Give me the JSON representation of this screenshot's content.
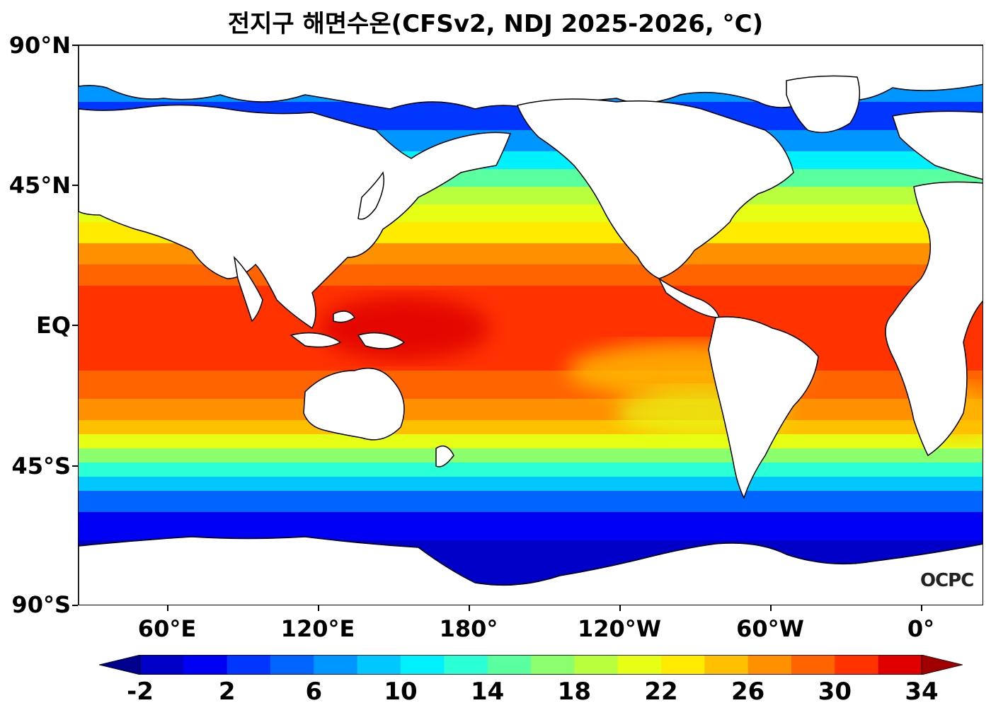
{
  "title": "전지구 해면수온(CFSv2, NDJ 2025-2026, °C)",
  "logo": "OCPC",
  "axes": {
    "lat_labels": [
      "90°N",
      "45°N",
      "EQ",
      "45°S",
      "90°S"
    ],
    "lon_labels": [
      "60°E",
      "120°E",
      "180°",
      "120°W",
      "60°W",
      "0°"
    ]
  },
  "colorbar": {
    "labels": [
      "-2",
      "2",
      "6",
      "10",
      "14",
      "18",
      "22",
      "26",
      "30",
      "34"
    ],
    "colors": [
      "#00008f",
      "#0000c8",
      "#0000f5",
      "#0036ff",
      "#0064ff",
      "#0096ff",
      "#00c8ff",
      "#00f0ff",
      "#2affd5",
      "#5aff9f",
      "#8cff6e",
      "#b9ff3e",
      "#e6ff14",
      "#ffeb00",
      "#ffc000",
      "#ff9000",
      "#ff6400",
      "#ff3200",
      "#e00000",
      "#a00000"
    ],
    "min": -2,
    "max": 34,
    "step": 2,
    "extend": "both"
  },
  "chart_data": {
    "type": "heatmap",
    "title": "전지구 해면수온(CFSv2, NDJ 2025-2026, °C)",
    "projection": "equirectangular, centered 150°W",
    "lat_range": [
      -90,
      90
    ],
    "lon_ticks": [
      "60°E",
      "120°E",
      "180°",
      "120°W",
      "60°W",
      "0°"
    ],
    "lat_ticks": [
      "90°N",
      "45°N",
      "EQ",
      "45°S",
      "90°S"
    ],
    "units": "°C",
    "value_range": [
      -2,
      34
    ]
  }
}
